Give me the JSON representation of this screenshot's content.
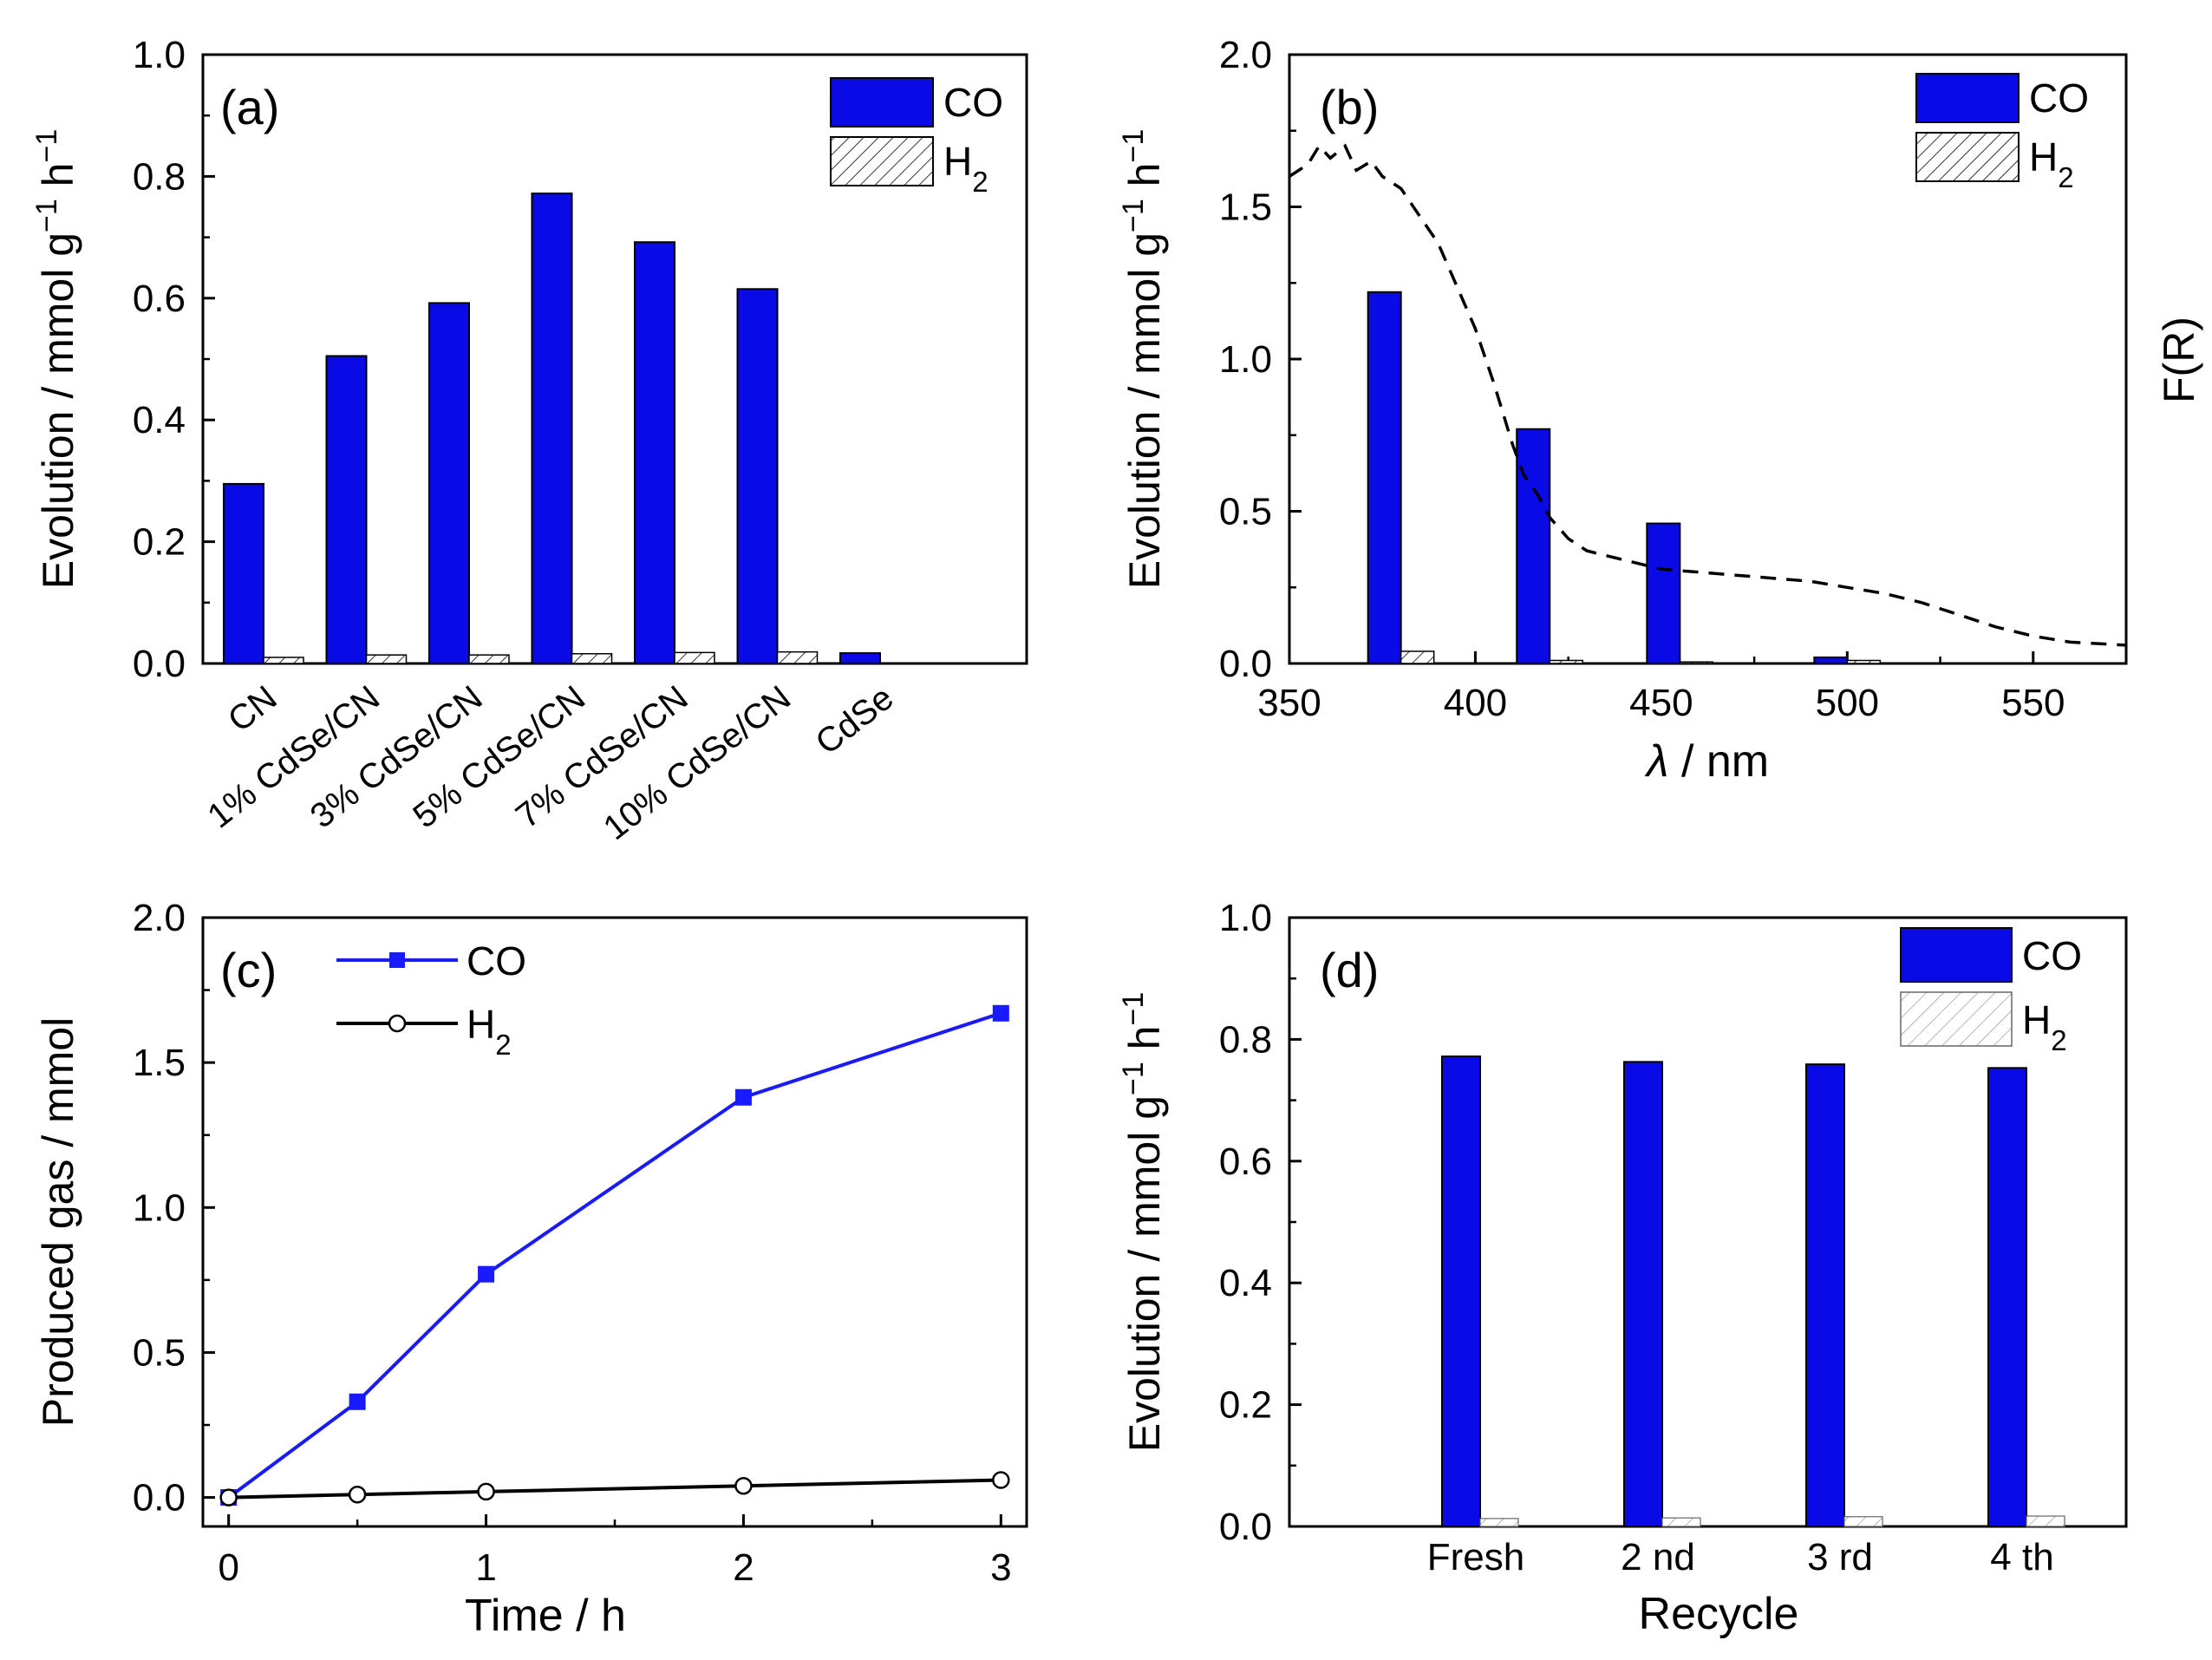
{
  "chart_data": [
    {
      "type": "bar",
      "panel_label": "(a)",
      "title": "",
      "xlabel": "",
      "ylabel": "Evolution / mmol g⁻¹ h⁻¹",
      "ylim": [
        0,
        1.0
      ],
      "yticks": [
        0.0,
        0.2,
        0.4,
        0.6,
        0.8,
        1.0
      ],
      "ytick_labels": [
        "0.0",
        "0.2",
        "0.4",
        "0.6",
        "0.8",
        "1.0"
      ],
      "categories": [
        "CN",
        "1% CdSe/CN",
        "3% CdSe/CN",
        "5% CdSe/CN",
        "7% CdSe/CN",
        "10% CdSe/CN",
        "CdSe"
      ],
      "series": [
        {
          "name": "CO",
          "values": [
            0.295,
            0.505,
            0.592,
            0.772,
            0.692,
            0.615,
            0.017
          ]
        },
        {
          "name": "H₂",
          "values": [
            0.01,
            0.014,
            0.014,
            0.016,
            0.018,
            0.019,
            0.0
          ]
        }
      ],
      "legend": [
        "CO",
        "H₂"
      ],
      "legend_position": "top-right"
    },
    {
      "type": "bar",
      "panel_label": "(b)",
      "title": "",
      "xlabel": "λ / nm",
      "ylabel": "Evolution / mmol g⁻¹ h⁻¹",
      "y2label": "F(R)",
      "xlim": [
        350,
        575
      ],
      "xticks": [
        350,
        400,
        450,
        500,
        550
      ],
      "xtick_labels": [
        "350",
        "400",
        "450",
        "500",
        "550"
      ],
      "ylim": [
        0,
        2.0
      ],
      "yticks": [
        0.0,
        0.5,
        1.0,
        1.5,
        2.0
      ],
      "ytick_labels": [
        "0.0",
        "0.5",
        "1.0",
        "1.5",
        "2.0"
      ],
      "wavelengths": [
        380,
        420,
        455,
        500,
        550
      ],
      "series": [
        {
          "name": "CO",
          "values": [
            1.22,
            0.77,
            0.46,
            0.02,
            0.0
          ]
        },
        {
          "name": "H₂",
          "values": [
            0.04,
            0.01,
            0.005,
            0.01,
            0.0
          ]
        }
      ],
      "absorption_curve": {
        "name": "F(R)",
        "style": "dashed",
        "x": [
          350,
          355,
          358,
          361,
          365,
          368,
          372,
          375,
          380,
          390,
          400,
          405,
          410,
          413,
          417,
          420,
          425,
          430,
          440,
          450,
          460,
          470,
          480,
          490,
          500,
          510,
          520,
          530,
          540,
          550,
          560,
          575
        ],
        "y": [
          1.6,
          1.64,
          1.7,
          1.66,
          1.7,
          1.62,
          1.65,
          1.6,
          1.56,
          1.38,
          1.1,
          0.92,
          0.72,
          0.62,
          0.55,
          0.48,
          0.41,
          0.37,
          0.34,
          0.31,
          0.3,
          0.29,
          0.28,
          0.27,
          0.25,
          0.23,
          0.2,
          0.16,
          0.12,
          0.09,
          0.07,
          0.06
        ]
      },
      "legend": [
        "CO",
        "H₂"
      ],
      "legend_position": "top-right"
    },
    {
      "type": "line",
      "panel_label": "(c)",
      "title": "",
      "xlabel": "Time / h",
      "ylabel": "Produced gas / mmol",
      "xlim": [
        -0.1,
        3.1
      ],
      "xticks": [
        0,
        1,
        2,
        3
      ],
      "xtick_labels": [
        "0",
        "1",
        "2",
        "3"
      ],
      "ylim": [
        -0.1,
        2.0
      ],
      "yticks": [
        0.0,
        0.5,
        1.0,
        1.5,
        2.0
      ],
      "ytick_labels": [
        "0.0",
        "0.5",
        "1.0",
        "1.5",
        "2.0"
      ],
      "x": [
        0,
        0.5,
        1,
        2,
        3
      ],
      "series": [
        {
          "name": "CO",
          "values": [
            0.0,
            0.33,
            0.77,
            1.38,
            1.67
          ]
        },
        {
          "name": "H₂",
          "values": [
            0.0,
            0.01,
            0.02,
            0.04,
            0.06
          ]
        }
      ],
      "legend": [
        "CO",
        "H₂"
      ],
      "legend_position": "top-left"
    },
    {
      "type": "bar",
      "panel_label": "(d)",
      "title": "",
      "xlabel": "Recycle",
      "ylabel": "Evolution / mmol g⁻¹ h⁻¹",
      "ylim": [
        0,
        1.0
      ],
      "yticks": [
        0.0,
        0.2,
        0.4,
        0.6,
        0.8,
        1.0
      ],
      "ytick_labels": [
        "0.0",
        "0.2",
        "0.4",
        "0.6",
        "0.8",
        "1.0"
      ],
      "categories": [
        "Fresh",
        "2 nd",
        "3 rd",
        "4 th"
      ],
      "series": [
        {
          "name": "CO",
          "values": [
            0.772,
            0.763,
            0.759,
            0.753
          ]
        },
        {
          "name": "H₂",
          "values": [
            0.013,
            0.014,
            0.016,
            0.017
          ]
        }
      ],
      "legend": [
        "CO",
        "H₂"
      ],
      "legend_position": "top-right"
    }
  ],
  "colors": {
    "co": "#0a0ae6",
    "axis": "#000000",
    "line_co": "#1a1aff",
    "line_h2": "#000000"
  }
}
